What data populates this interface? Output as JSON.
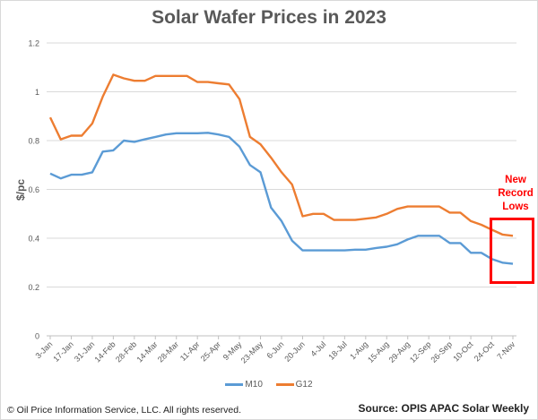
{
  "chart_data": {
    "type": "line",
    "title": "Solar Wafer Prices in 2023",
    "xlabel": "",
    "ylabel": "$/pc",
    "ylim": [
      0,
      1.2
    ],
    "yticks": [
      "0",
      "0.2",
      "0.4",
      "0.6",
      "0.8",
      "1",
      "1.2"
    ],
    "ytick_values": [
      0,
      0.2,
      0.4,
      0.6,
      0.8,
      1.0,
      1.2
    ],
    "grid": true,
    "legend_position": "bottom",
    "xtick_labels": [
      "3-Jan",
      "17-Jan",
      "31-Jan",
      "14-Feb",
      "28-Feb",
      "14-Mar",
      "28-Mar",
      "11-Apr",
      "25-Apr",
      "9-May",
      "23-May",
      "6-Jun",
      "20-Jun",
      "4-Jul",
      "18-Jul",
      "1-Aug",
      "15-Aug",
      "29-Aug",
      "12-Sep",
      "26-Sep",
      "10-Oct",
      "24-Oct",
      "7-Nov"
    ],
    "x": [
      "3-Jan",
      "10-Jan",
      "17-Jan",
      "24-Jan",
      "31-Jan",
      "7-Feb",
      "14-Feb",
      "21-Feb",
      "28-Feb",
      "7-Mar",
      "14-Mar",
      "21-Mar",
      "28-Mar",
      "4-Apr",
      "11-Apr",
      "18-Apr",
      "25-Apr",
      "2-May",
      "9-May",
      "16-May",
      "23-May",
      "30-May",
      "6-Jun",
      "13-Jun",
      "20-Jun",
      "27-Jun",
      "4-Jul",
      "11-Jul",
      "18-Jul",
      "25-Jul",
      "1-Aug",
      "8-Aug",
      "15-Aug",
      "22-Aug",
      "29-Aug",
      "5-Sep",
      "12-Sep",
      "19-Sep",
      "26-Sep",
      "3-Oct",
      "10-Oct",
      "17-Oct",
      "24-Oct",
      "31-Oct",
      "7-Nov"
    ],
    "series": [
      {
        "name": "M10",
        "color": "#5b9bd5",
        "values": [
          0.665,
          0.645,
          0.66,
          0.66,
          0.67,
          0.755,
          0.76,
          0.8,
          0.795,
          0.805,
          0.815,
          0.825,
          0.83,
          0.83,
          0.83,
          0.832,
          0.825,
          0.815,
          0.775,
          0.7,
          0.67,
          0.525,
          0.47,
          0.39,
          0.35,
          0.35,
          0.35,
          0.35,
          0.35,
          0.353,
          0.353,
          0.36,
          0.365,
          0.375,
          0.395,
          0.41,
          0.41,
          0.41,
          0.38,
          0.38,
          0.34,
          0.34,
          0.315,
          0.3,
          0.295
        ]
      },
      {
        "name": "G12",
        "color": "#ed7d31",
        "values": [
          0.895,
          0.805,
          0.82,
          0.82,
          0.87,
          0.98,
          1.07,
          1.055,
          1.045,
          1.045,
          1.065,
          1.065,
          1.065,
          1.065,
          1.04,
          1.04,
          1.035,
          1.03,
          0.97,
          0.815,
          0.785,
          0.73,
          0.67,
          0.62,
          0.49,
          0.5,
          0.5,
          0.475,
          0.475,
          0.475,
          0.48,
          0.485,
          0.5,
          0.52,
          0.53,
          0.53,
          0.53,
          0.53,
          0.505,
          0.505,
          0.47,
          0.455,
          0.435,
          0.415,
          0.41
        ]
      }
    ],
    "annotations": [
      {
        "text": [
          "New",
          "Record",
          "Lows"
        ],
        "color": "#ff0000"
      }
    ]
  },
  "footer": {
    "copyright": "© Oil Price Information Service, LLC.  All rights reserved.",
    "source": "Source: OPIS APAC Solar Weekly"
  }
}
